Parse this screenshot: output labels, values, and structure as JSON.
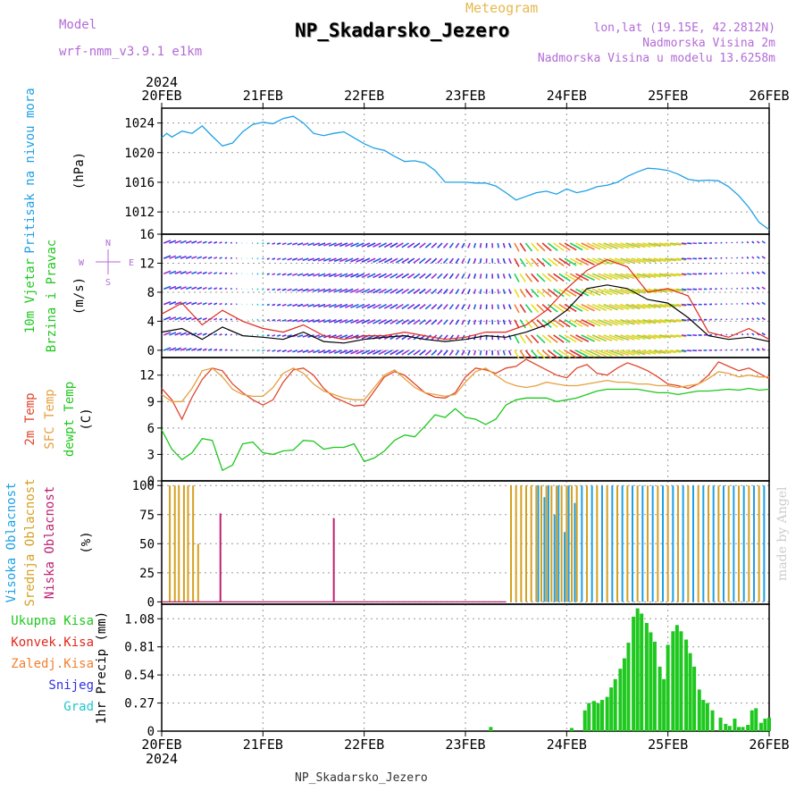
{
  "header": {
    "model_label": "Model",
    "model_name": "wrf-nmm_v3.9.1  e1km",
    "meteogram_label": "Meteogram",
    "station": "NP_Skadarsko_Jezero",
    "lonlat": "lon,lat (19.15E, 42.2812N)",
    "elev1": "Nadmorska Visina 2m",
    "elev2": "Nadmorska Visina u modelu 13.6258m",
    "footer": "NP_Skadarsko_Jezero",
    "credit": "made by Angel",
    "year": "2024",
    "colors": {
      "purple": "#b36bd6",
      "orange": "#e6b84d",
      "title": "#000000"
    }
  },
  "chart_data": [
    {
      "type": "line",
      "panel": "pressure",
      "ylabel_outer": "Pritisak na nivou mora",
      "ylabel_inner": "(hPa)",
      "ylim": [
        1009,
        1026
      ],
      "yticks": [
        1012,
        1016,
        1020,
        1024
      ],
      "x_ticks": [
        "20FEB",
        "21FEB",
        "22FEB",
        "23FEB",
        "24FEB",
        "25FEB",
        "26FEB"
      ],
      "series": [
        {
          "color": "#1ea0e6",
          "x": [
            0,
            0.05,
            0.1,
            0.2,
            0.3,
            0.4,
            0.5,
            0.6,
            0.7,
            0.8,
            0.9,
            1.0,
            1.1,
            1.2,
            1.3,
            1.4,
            1.5,
            1.6,
            1.7,
            1.8,
            1.9,
            2.0,
            2.1,
            2.2,
            2.3,
            2.4,
            2.5,
            2.6,
            2.7,
            2.8,
            2.9,
            3.0,
            3.1,
            3.2,
            3.3,
            3.4,
            3.5,
            3.6,
            3.7,
            3.8,
            3.9,
            4.0,
            4.1,
            4.2,
            4.3,
            4.4,
            4.5,
            4.6,
            4.7,
            4.8,
            4.9,
            5.0,
            5.1,
            5.2,
            5.3,
            5.4,
            5.5,
            5.6,
            5.7,
            5.8,
            5.9,
            6.0
          ],
          "values": [
            1022.0,
            1022.6,
            1022.1,
            1022.9,
            1022.6,
            1023.6,
            1022.2,
            1020.9,
            1021.3,
            1022.8,
            1023.8,
            1024.1,
            1023.9,
            1024.6,
            1024.9,
            1024.0,
            1022.6,
            1022.3,
            1022.6,
            1022.8,
            1022.0,
            1021.2,
            1020.6,
            1020.3,
            1019.5,
            1018.8,
            1018.9,
            1018.6,
            1017.6,
            1016.0,
            1016.0,
            1016.0,
            1015.9,
            1015.9,
            1015.5,
            1014.6,
            1013.6,
            1014.1,
            1014.6,
            1014.8,
            1014.4,
            1015.1,
            1014.6,
            1014.9,
            1015.4,
            1015.6,
            1016.0,
            1016.8,
            1017.4,
            1017.9,
            1017.8,
            1017.6,
            1017.1,
            1016.4,
            1016.2,
            1016.3,
            1016.2,
            1015.4,
            1014.2,
            1012.6,
            1010.6,
            1009.6
          ]
        }
      ]
    },
    {
      "type": "line",
      "panel": "wind",
      "ylabel_outer1": "10m Vjetar",
      "ylabel_outer2": "Brzina i Pravac",
      "ylabel_inner": "(m/s)",
      "compass_n": "N",
      "compass_s": "S",
      "compass_e": "E",
      "compass_w": "W",
      "ylim": [
        -1,
        16
      ],
      "yticks": [
        0,
        4,
        8,
        12,
        16
      ],
      "series": [
        {
          "name": "speed",
          "color": "#000000",
          "x": [
            0,
            0.2,
            0.4,
            0.6,
            0.8,
            1.0,
            1.2,
            1.4,
            1.6,
            1.8,
            2.0,
            2.2,
            2.4,
            2.6,
            2.8,
            3.0,
            3.2,
            3.4,
            3.6,
            3.8,
            4.0,
            4.2,
            4.4,
            4.6,
            4.8,
            5.0,
            5.2,
            5.4,
            5.6,
            5.8,
            6.0
          ],
          "values": [
            2.5,
            3.0,
            1.5,
            3.2,
            2.0,
            1.8,
            1.5,
            2.5,
            1.2,
            1.0,
            1.5,
            1.8,
            2.0,
            1.5,
            1.2,
            1.5,
            2.0,
            1.8,
            2.5,
            3.5,
            5.5,
            8.5,
            9.0,
            8.5,
            7.0,
            6.5,
            4.5,
            2.0,
            1.5,
            1.8,
            1.2
          ]
        },
        {
          "name": "gust",
          "color": "#e0281e",
          "x": [
            0,
            0.2,
            0.4,
            0.6,
            0.8,
            1.0,
            1.2,
            1.4,
            1.6,
            1.8,
            2.0,
            2.2,
            2.4,
            2.6,
            2.8,
            3.0,
            3.2,
            3.4,
            3.6,
            3.8,
            4.0,
            4.2,
            4.4,
            4.6,
            4.8,
            5.0,
            5.2,
            5.4,
            5.6,
            5.8,
            6.0
          ],
          "values": [
            5.0,
            6.5,
            3.5,
            5.5,
            4.0,
            3.0,
            2.5,
            3.5,
            2.0,
            1.5,
            2.0,
            2.0,
            2.5,
            2.0,
            1.5,
            1.8,
            2.5,
            2.5,
            3.5,
            5.5,
            8.5,
            11.0,
            12.5,
            11.5,
            8.0,
            8.5,
            7.5,
            2.5,
            1.8,
            3.0,
            1.5
          ]
        }
      ]
    },
    {
      "type": "line",
      "panel": "temperature",
      "ylabel_outer1": "2m Temp",
      "ylabel_outer2": "SFC Temp",
      "ylabel_outer3": "dewpt Temp",
      "ylabel_inner": "(C)",
      "ylim": [
        0,
        14
      ],
      "yticks": [
        0,
        3,
        6,
        9,
        12
      ],
      "series": [
        {
          "name": "2m Temp",
          "color": "#e0462c",
          "x": [
            0,
            0.1,
            0.2,
            0.3,
            0.4,
            0.5,
            0.6,
            0.7,
            0.8,
            0.9,
            1.0,
            1.1,
            1.2,
            1.3,
            1.4,
            1.5,
            1.6,
            1.7,
            1.8,
            1.9,
            2.0,
            2.1,
            2.2,
            2.3,
            2.4,
            2.5,
            2.6,
            2.7,
            2.8,
            2.9,
            3.0,
            3.1,
            3.2,
            3.3,
            3.4,
            3.5,
            3.6,
            3.7,
            3.8,
            3.9,
            4.0,
            4.1,
            4.2,
            4.3,
            4.4,
            4.5,
            4.6,
            4.7,
            4.8,
            4.9,
            5.0,
            5.1,
            5.2,
            5.3,
            5.4,
            5.5,
            5.6,
            5.7,
            5.8,
            5.9,
            6.0
          ],
          "values": [
            10.5,
            9.2,
            7.0,
            9.5,
            11.5,
            12.8,
            12.5,
            11.0,
            10.0,
            9.2,
            8.6,
            9.2,
            11.2,
            12.6,
            12.8,
            12.0,
            10.5,
            9.5,
            9.0,
            8.5,
            8.6,
            10.2,
            11.8,
            12.4,
            12.0,
            11.0,
            10.0,
            9.5,
            9.4,
            10.0,
            11.8,
            12.8,
            12.6,
            12.2,
            12.8,
            13.0,
            13.8,
            13.2,
            12.6,
            12.0,
            11.7,
            12.8,
            13.2,
            12.2,
            12.0,
            12.8,
            13.4,
            13.0,
            12.5,
            11.8,
            11.0,
            10.8,
            10.5,
            11.0,
            12.0,
            13.5,
            13.0,
            12.5,
            12.8,
            12.2,
            11.6
          ]
        },
        {
          "name": "SFC Temp",
          "color": "#e6a040",
          "x": [
            0,
            0.1,
            0.2,
            0.3,
            0.4,
            0.5,
            0.6,
            0.7,
            0.8,
            0.9,
            1.0,
            1.1,
            1.2,
            1.3,
            1.4,
            1.5,
            1.6,
            1.7,
            1.8,
            1.9,
            2.0,
            2.1,
            2.2,
            2.3,
            2.4,
            2.5,
            2.6,
            2.7,
            2.8,
            2.9,
            3.0,
            3.1,
            3.2,
            3.3,
            3.4,
            3.5,
            3.6,
            3.7,
            3.8,
            3.9,
            4.0,
            4.1,
            4.2,
            4.3,
            4.4,
            4.5,
            4.6,
            4.7,
            4.8,
            4.9,
            5.0,
            5.1,
            5.2,
            5.3,
            5.4,
            5.5,
            5.6,
            5.7,
            5.8,
            5.9,
            6.0
          ],
          "values": [
            9.8,
            9.0,
            9.0,
            10.5,
            12.5,
            12.8,
            11.8,
            10.4,
            9.8,
            9.6,
            9.6,
            10.6,
            12.2,
            12.8,
            12.2,
            11.0,
            10.2,
            9.8,
            9.4,
            9.2,
            9.2,
            10.6,
            12.0,
            12.6,
            11.6,
            10.6,
            10.0,
            9.8,
            9.6,
            9.8,
            11.2,
            12.4,
            12.8,
            12.0,
            11.2,
            10.8,
            10.6,
            10.8,
            11.2,
            11.0,
            10.8,
            10.8,
            11.0,
            11.2,
            11.4,
            11.2,
            11.2,
            11.0,
            11.0,
            10.8,
            10.8,
            10.6,
            10.8,
            11.0,
            11.6,
            12.4,
            12.2,
            11.8,
            12.0,
            11.8,
            11.8
          ]
        },
        {
          "name": "dewpt Temp",
          "color": "#1ec81e",
          "x": [
            0,
            0.1,
            0.2,
            0.3,
            0.4,
            0.5,
            0.6,
            0.7,
            0.8,
            0.9,
            1.0,
            1.1,
            1.2,
            1.3,
            1.4,
            1.5,
            1.6,
            1.7,
            1.8,
            1.9,
            2.0,
            2.1,
            2.2,
            2.3,
            2.4,
            2.5,
            2.6,
            2.7,
            2.8,
            2.9,
            3.0,
            3.1,
            3.2,
            3.3,
            3.4,
            3.5,
            3.6,
            3.7,
            3.8,
            3.9,
            4.0,
            4.1,
            4.2,
            4.3,
            4.4,
            4.5,
            4.6,
            4.7,
            4.8,
            4.9,
            5.0,
            5.1,
            5.2,
            5.3,
            5.4,
            5.5,
            5.6,
            5.7,
            5.8,
            5.9,
            6.0
          ],
          "values": [
            5.8,
            3.6,
            2.4,
            3.2,
            4.8,
            4.6,
            1.2,
            1.8,
            4.2,
            4.4,
            3.2,
            3.0,
            3.4,
            3.5,
            4.6,
            4.5,
            3.6,
            3.8,
            3.8,
            4.2,
            2.2,
            2.6,
            3.4,
            4.6,
            5.2,
            5.0,
            6.2,
            7.5,
            7.2,
            8.2,
            7.2,
            7.0,
            6.4,
            7.0,
            8.6,
            9.2,
            9.4,
            9.4,
            9.4,
            9.0,
            9.2,
            9.4,
            9.8,
            10.2,
            10.4,
            10.4,
            10.4,
            10.4,
            10.2,
            10.0,
            10.0,
            9.8,
            10.0,
            10.2,
            10.2,
            10.3,
            10.4,
            10.3,
            10.5,
            10.3,
            10.4
          ]
        }
      ]
    },
    {
      "type": "bar",
      "panel": "cloud",
      "ylabel_outer1": "Visoka Oblacnost",
      "ylabel_outer2": "Srednja Oblacnost",
      "ylabel_outer3": "Niska Oblacnost",
      "ylabel_inner": "(%)",
      "ylim": [
        -2,
        104
      ],
      "yticks": [
        0,
        25,
        50,
        75,
        100
      ],
      "series": [
        {
          "name": "Srednja",
          "color": "#d4a020",
          "x": [
            0.08,
            0.13,
            0.17,
            0.22,
            0.26,
            0.31,
            0.36,
            3.45,
            3.5,
            3.55,
            3.6,
            3.65,
            3.7,
            3.75,
            3.8,
            3.85,
            3.9,
            3.95,
            4.0,
            4.05,
            4.1,
            4.2,
            4.3,
            4.4,
            4.5,
            4.6,
            4.7,
            4.8,
            4.9,
            5.0,
            5.1,
            5.2,
            5.3,
            5.4,
            5.5,
            5.6,
            5.7,
            5.8,
            5.9
          ],
          "values": [
            100,
            100,
            100,
            100,
            100,
            100,
            50,
            100,
            100,
            100,
            100,
            100,
            100,
            100,
            100,
            100,
            100,
            100,
            100,
            100,
            100,
            100,
            100,
            100,
            100,
            100,
            100,
            100,
            100,
            100,
            100,
            100,
            100,
            100,
            100,
            100,
            100,
            100,
            100
          ]
        },
        {
          "name": "Visoka",
          "color": "#1ea0e6",
          "x": [
            3.72,
            3.78,
            3.82,
            3.88,
            3.92,
            3.98,
            4.02,
            4.08,
            4.15,
            4.25,
            4.35,
            4.45,
            4.55,
            4.65,
            4.75,
            4.85,
            4.95,
            5.05,
            5.15,
            5.25,
            5.35,
            5.45,
            5.55,
            5.65,
            5.75,
            5.85,
            5.95
          ],
          "values": [
            100,
            90,
            100,
            75,
            100,
            60,
            100,
            85,
            100,
            100,
            100,
            100,
            100,
            100,
            100,
            100,
            100,
            100,
            100,
            100,
            100,
            100,
            100,
            100,
            100,
            100,
            100
          ]
        },
        {
          "name": "Niska",
          "color": "#c02070",
          "x": [
            0.58,
            1.7
          ],
          "values": [
            76,
            72
          ]
        }
      ]
    },
    {
      "type": "bar",
      "panel": "precip",
      "legend": [
        "Ukupna Kisa",
        "Konvek.Kisa",
        "Zaledj.Kisa",
        "Snijeg",
        "Grad"
      ],
      "legend_colors": [
        "#1ec81e",
        "#e0281e",
        "#f08030",
        "#3030e6",
        "#20c8c8"
      ],
      "ylabel_inner": "1hr Precip (mm)",
      "ylim": [
        0,
        1.22
      ],
      "yticks": [
        0,
        0.27,
        0.54,
        0.81,
        1.08
      ],
      "ytick_labels": [
        "0",
        "0.27",
        "0.54",
        "0.81",
        "1.08"
      ],
      "series": [
        {
          "name": "Ukupna Kisa",
          "color": "#1ec81e",
          "x": [
            3.25,
            4.05,
            4.18,
            4.22,
            4.27,
            4.31,
            4.35,
            4.4,
            4.44,
            4.48,
            4.53,
            4.57,
            4.61,
            4.66,
            4.7,
            4.74,
            4.79,
            4.83,
            4.87,
            4.92,
            4.96,
            5.0,
            5.05,
            5.09,
            5.13,
            5.18,
            5.22,
            5.26,
            5.31,
            5.35,
            5.39,
            5.44,
            5.52,
            5.57,
            5.61,
            5.66,
            5.7,
            5.74,
            5.79,
            5.83,
            5.87,
            5.92,
            5.96,
            6.0
          ],
          "values": [
            0.04,
            0.03,
            0.2,
            0.27,
            0.29,
            0.27,
            0.3,
            0.33,
            0.42,
            0.5,
            0.6,
            0.7,
            0.85,
            1.1,
            1.18,
            1.13,
            1.04,
            0.95,
            0.86,
            0.62,
            0.5,
            0.83,
            0.96,
            1.02,
            0.96,
            0.88,
            0.75,
            0.62,
            0.4,
            0.3,
            0.27,
            0.2,
            0.13,
            0.07,
            0.05,
            0.12,
            0.04,
            0.04,
            0.06,
            0.2,
            0.22,
            0.08,
            0.12,
            0.13
          ]
        }
      ]
    }
  ]
}
